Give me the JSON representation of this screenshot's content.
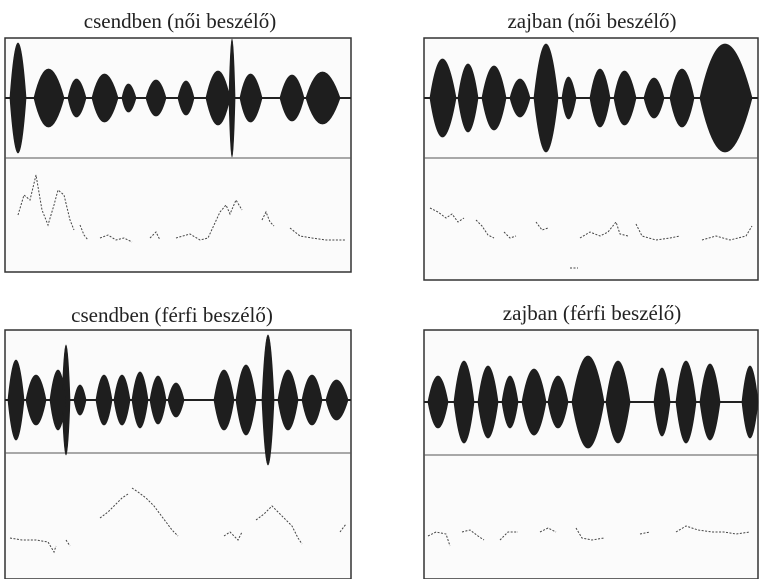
{
  "panels": [
    {
      "title": "csendben (női beszélő)"
    },
    {
      "title": "zajban (női beszélő)"
    },
    {
      "title": "csendben (férfi beszélő)"
    },
    {
      "title": "zajban (férfi beszélő)"
    }
  ]
}
